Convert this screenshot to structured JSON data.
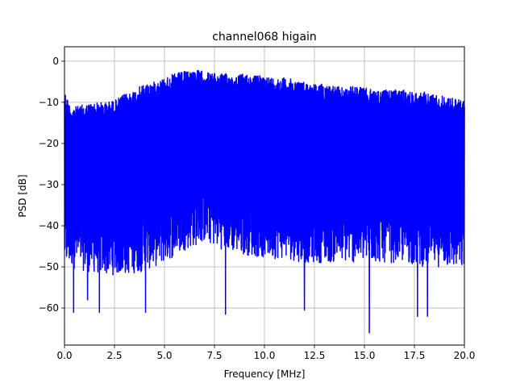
{
  "chart_data": {
    "type": "line",
    "title": "channel068 higain",
    "xlabel": "Frequency [MHz]",
    "ylabel": "PSD [dB]",
    "xlim": [
      0,
      20
    ],
    "ylim": [
      -69,
      3.5
    ],
    "xticks": [
      0,
      2.5,
      5,
      7.5,
      10,
      12.5,
      15,
      17.5,
      20
    ],
    "xtick_labels": [
      "0.0",
      "2.5",
      "5.0",
      "7.5",
      "10.0",
      "12.5",
      "15.0",
      "17.5",
      "20.0"
    ],
    "yticks": [
      0,
      -10,
      -20,
      -30,
      -40,
      -50,
      -60
    ],
    "ytick_labels": [
      "0",
      "−10",
      "−20",
      "−30",
      "−40",
      "−50",
      "−60"
    ],
    "grid": true,
    "series": [
      {
        "color": "#0000ff",
        "upper_envelope": {
          "x": [
            0,
            0.3,
            0.6,
            1.0,
            1.5,
            2.0,
            2.5,
            3.0,
            3.5,
            4.0,
            4.5,
            5.0,
            5.5,
            6.0,
            6.5,
            7.0,
            7.5,
            8.0,
            8.5,
            9.0,
            9.5,
            10.0,
            10.5,
            11.0,
            11.5,
            12.0,
            12.5,
            13.0,
            13.5,
            14.0,
            14.5,
            15.0,
            15.5,
            16.0,
            16.5,
            17.0,
            17.5,
            18.0,
            18.5,
            19.0,
            19.5,
            20.0
          ],
          "y": [
            -7,
            -11,
            -11,
            -10.5,
            -10,
            -10,
            -9.5,
            -8,
            -7,
            -5.5,
            -5,
            -4,
            -3,
            -2.5,
            -2,
            -2.5,
            -3,
            -3,
            -3.5,
            -3,
            -3.5,
            -3.5,
            -4,
            -4,
            -4.5,
            -5,
            -5.5,
            -5.5,
            -6,
            -6.5,
            -6,
            -6.5,
            -7,
            -7,
            -7,
            -7,
            -7.5,
            -7.5,
            -8,
            -8.5,
            -9,
            -9.5
          ]
        },
        "lower_envelope": {
          "x": [
            0,
            1,
            2,
            3,
            4,
            5,
            6,
            7,
            8,
            9,
            10,
            11,
            12,
            13,
            14,
            15,
            16,
            17,
            18,
            19,
            20
          ],
          "y": [
            -47,
            -48,
            -49,
            -49,
            -48,
            -46,
            -43,
            -41,
            -43,
            -44,
            -45,
            -45,
            -46,
            -46,
            -46,
            -46,
            -46,
            -46,
            -47,
            -47,
            -48
          ]
        },
        "dips": {
          "x": [
            0.45,
            1.15,
            1.75,
            4.05,
            8.05,
            12.0,
            15.25,
            17.65,
            18.15
          ],
          "y": [
            -61,
            -58,
            -61,
            -61,
            -61.5,
            -60.5,
            -66,
            -62,
            -62
          ]
        }
      }
    ]
  }
}
